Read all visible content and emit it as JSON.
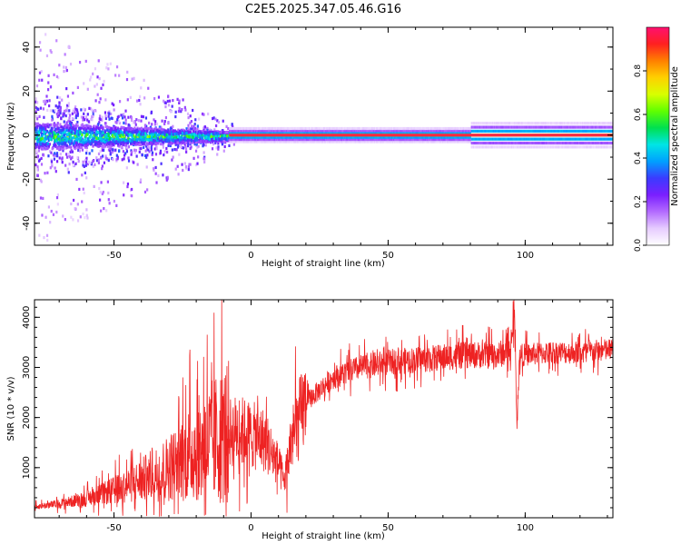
{
  "page": {
    "title": "C2E5.2025.347.05.46.G16"
  },
  "chart_data": [
    {
      "type": "heatmap",
      "title": "C2E5.2025.347.05.46.G16",
      "xlabel": "Height of straight line (km)",
      "ylabel": "Frequency (Hz)",
      "xlim": [
        -79,
        132
      ],
      "ylim": [
        -50,
        49
      ],
      "xticks": [
        -50,
        0,
        50,
        100
      ],
      "yticks": [
        -40,
        -20,
        0,
        20,
        40
      ],
      "colorbar": {
        "label": "Normalized spectral amplitude",
        "range": [
          0,
          1
        ],
        "ticks": [
          0.0,
          0.2,
          0.4,
          0.6,
          0.8
        ],
        "colormap": [
          "#ffffff",
          "#e6ccff",
          "#b36bff",
          "#7a1fff",
          "#3b3bff",
          "#00a0ff",
          "#00e5e5",
          "#00e050",
          "#60ff00",
          "#d8ff00",
          "#ffd000",
          "#ff8000",
          "#ff2020",
          "#ff1070"
        ]
      },
      "series": [
        {
          "name": "carrier line",
          "x_start": -8,
          "x_end": 132,
          "frequency": 0,
          "amplitude": 0.9
        },
        {
          "name": "noisy spread",
          "x_start": -79,
          "x_end": -8,
          "frequency_spread": [
            -48,
            48
          ],
          "amplitude": 0.25
        }
      ]
    },
    {
      "type": "line",
      "xlabel": "Height of straight line (km)",
      "ylabel": "SNR (10 * v/v)",
      "xlim": [
        -79,
        132
      ],
      "ylim": [
        0,
        4350
      ],
      "xticks": [
        -50,
        0,
        50,
        100
      ],
      "yticks": [
        1000,
        2000,
        3000,
        4000
      ],
      "color": "#ee2222",
      "series": [
        {
          "name": "SNR",
          "x": [
            -79,
            -70,
            -60,
            -50,
            -40,
            -30,
            -25,
            -20,
            -15,
            -10,
            -5,
            0,
            5,
            10,
            12,
            15,
            20,
            30,
            40,
            50,
            60,
            70,
            80,
            90,
            95,
            96,
            97,
            98,
            100,
            110,
            120,
            132
          ],
          "y": [
            220,
            280,
            380,
            550,
            750,
            1000,
            1200,
            1350,
            1500,
            1650,
            1750,
            1650,
            1550,
            1050,
            700,
            1600,
            2300,
            2800,
            3000,
            3100,
            3150,
            3200,
            3250,
            3250,
            3350,
            4200,
            1900,
            3250,
            3250,
            3300,
            3300,
            3350
          ]
        }
      ]
    }
  ]
}
